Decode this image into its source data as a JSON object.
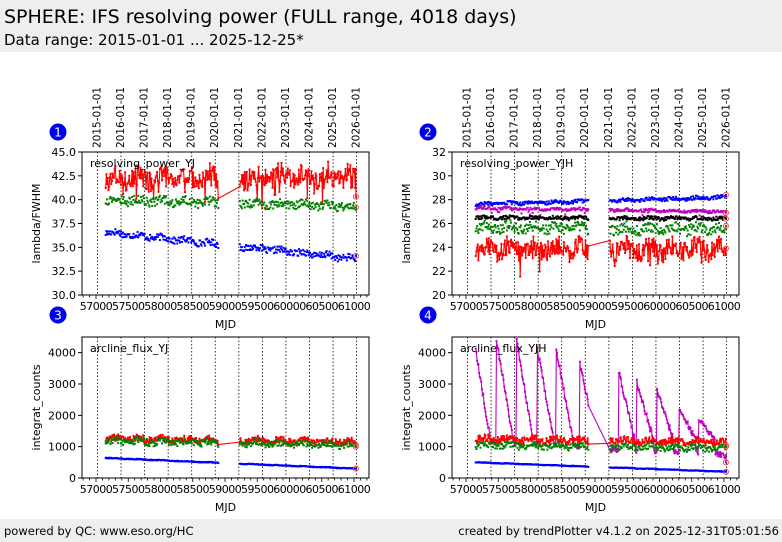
{
  "header": {
    "title": "SPHERE: IFS resolving power (FULL range, 4018 days)",
    "subtitle": "Data range: 2015-01-01 ... 2025-12-25*"
  },
  "footer": {
    "left": "powered by QC: www.eso.org/HC",
    "right": "created by trendPlotter v4.1.2 on 2025-12-31T05:01:56"
  },
  "chart_data": [
    {
      "id": 1,
      "type": "scatter",
      "title": "resolving_power_YJ",
      "xlabel": "MJD",
      "ylabel": "lambda/FWHM",
      "xlim": [
        56783,
        61233
      ],
      "ylim": [
        30.0,
        45.0
      ],
      "xticks": [
        "57000",
        "57500",
        "58000",
        "58500",
        "59000",
        "59500",
        "60000",
        "60500",
        "61000"
      ],
      "yticks": [
        "30.0",
        "32.5",
        "35.0",
        "37.5",
        "40.0",
        "42.5",
        "45.0"
      ],
      "top_date_ticks": [
        "2015-01-01",
        "2016-01-01",
        "2017-01-01",
        "2018-01-01",
        "2019-01-01",
        "2020-01-01",
        "2021-01-01",
        "2022-01-01",
        "2023-01-01",
        "2024-01-01",
        "2025-01-01",
        "2026-01-01"
      ],
      "gap_mjd": [
        58900,
        59230
      ],
      "series": [
        {
          "name": "red",
          "color": "#ff0000",
          "connected": true,
          "start": 42.2,
          "end": 42.5,
          "noise": 1.1,
          "dips": 2.5,
          "last": 40.3
        },
        {
          "name": "green",
          "color": "#008000",
          "connected": false,
          "start": 40.0,
          "end": 39.3,
          "noise": 0.45,
          "dips": 0.0,
          "last": 39.2
        },
        {
          "name": "blue",
          "color": "#0000ff",
          "connected": false,
          "start": 36.6,
          "end": 33.8,
          "noise": 0.35,
          "dips": 0.0,
          "last": 34.1
        }
      ]
    },
    {
      "id": 2,
      "type": "scatter",
      "title": "resolving_power_YJH",
      "xlabel": "MJD",
      "ylabel": "lambda/FWHM",
      "xlim": [
        56783,
        61233
      ],
      "ylim": [
        20,
        32
      ],
      "xticks": [
        "57000",
        "57500",
        "58000",
        "58500",
        "59000",
        "59500",
        "60000",
        "60500",
        "61000"
      ],
      "yticks": [
        "20",
        "22",
        "24",
        "26",
        "28",
        "30",
        "32"
      ],
      "top_date_ticks": [
        "2015-01-01",
        "2016-01-01",
        "2017-01-01",
        "2018-01-01",
        "2019-01-01",
        "2020-01-01",
        "2021-01-01",
        "2022-01-01",
        "2023-01-01",
        "2024-01-01",
        "2025-01-01",
        "2026-01-01"
      ],
      "gap_mjd": [
        58900,
        59230
      ],
      "series": [
        {
          "name": "blue",
          "color": "#0000ff",
          "connected": false,
          "start": 27.6,
          "end": 28.2,
          "noise": 0.15,
          "dips": 0.0,
          "last": 28.4
        },
        {
          "name": "magenta",
          "color": "#c000c0",
          "connected": false,
          "start": 27.3,
          "end": 27.0,
          "noise": 0.12,
          "dips": 0.6,
          "last": 26.9
        },
        {
          "name": "black",
          "color": "#000000",
          "connected": false,
          "start": 26.5,
          "end": 26.4,
          "noise": 0.15,
          "dips": 0.0,
          "last": 26.4
        },
        {
          "name": "green",
          "color": "#008000",
          "connected": false,
          "start": 25.7,
          "end": 25.5,
          "noise": 0.45,
          "dips": 0.0,
          "last": 25.8
        },
        {
          "name": "red",
          "color": "#ff0000",
          "connected": true,
          "start": 23.9,
          "end": 23.9,
          "noise": 0.8,
          "dips": 1.4,
          "last": 23.9
        }
      ]
    },
    {
      "id": 3,
      "type": "scatter",
      "title": "arcline_flux_YJ",
      "xlabel": "MJD",
      "ylabel": "integrat_counts",
      "xlim": [
        56783,
        61233
      ],
      "ylim": [
        0,
        4500
      ],
      "xticks": [
        "57000",
        "57500",
        "58000",
        "58500",
        "59000",
        "59500",
        "60000",
        "60500",
        "61000"
      ],
      "yticks": [
        "0",
        "1000",
        "2000",
        "3000",
        "4000"
      ],
      "gap_mjd": [
        58900,
        59230
      ],
      "series": [
        {
          "name": "red",
          "color": "#ff0000",
          "connected": true,
          "start": 1250,
          "end": 1150,
          "noise": 110,
          "dips": 0,
          "last": 1050
        },
        {
          "name": "green",
          "color": "#008000",
          "connected": false,
          "start": 1180,
          "end": 1050,
          "noise": 110,
          "dips": 0,
          "last": 1000
        },
        {
          "name": "blue",
          "color": "#0000ff",
          "connected": false,
          "start": 640,
          "end": 300,
          "noise": 12,
          "dips": 0,
          "last": 300
        }
      ]
    },
    {
      "id": 4,
      "type": "scatter",
      "title": "arcline_flux_YJH",
      "xlabel": "MJD",
      "ylabel": "integrat_counts",
      "xlim": [
        56783,
        61233
      ],
      "ylim": [
        0,
        4500
      ],
      "xticks": [
        "57000",
        "57500",
        "58000",
        "58500",
        "59000",
        "59500",
        "60000",
        "60500",
        "61000"
      ],
      "yticks": [
        "0",
        "1000",
        "2000",
        "3000",
        "4000"
      ],
      "gap_mjd": [
        58900,
        59230
      ],
      "series": [
        {
          "name": "magenta",
          "color": "#c000c0",
          "connected": true,
          "start": 1200,
          "end": 700,
          "noise": 90,
          "dips": 0,
          "last": 500,
          "peaks": [
            [
              57120,
              4450
            ],
            [
              57470,
              4450
            ],
            [
              57780,
              4450
            ],
            [
              58100,
              4200
            ],
            [
              58400,
              4100
            ],
            [
              58760,
              3700
            ],
            [
              59360,
              3450
            ],
            [
              59650,
              3050
            ],
            [
              59960,
              2800
            ],
            [
              60300,
              2300
            ],
            [
              60600,
              1950
            ]
          ]
        },
        {
          "name": "red",
          "color": "#ff0000",
          "connected": true,
          "start": 1250,
          "end": 1150,
          "noise": 110,
          "dips": 0,
          "last": 1050
        },
        {
          "name": "green",
          "color": "#008000",
          "connected": false,
          "start": 1050,
          "end": 950,
          "noise": 100,
          "dips": 0,
          "last": 1000
        },
        {
          "name": "blue",
          "color": "#0000ff",
          "connected": false,
          "start": 500,
          "end": 200,
          "noise": 10,
          "dips": 0,
          "last": 200
        }
      ]
    }
  ]
}
